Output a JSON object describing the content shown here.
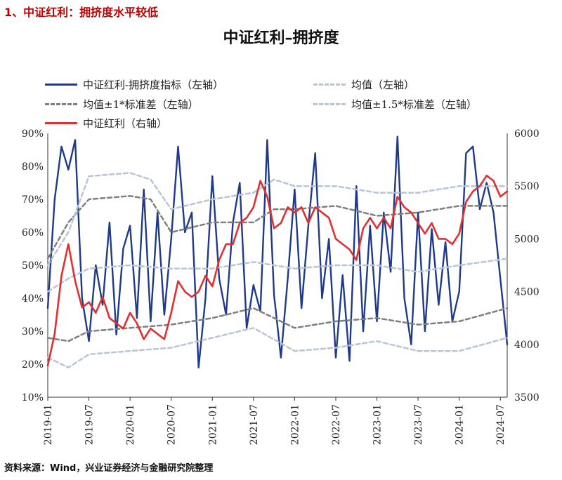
{
  "section_title": "1、中证红利：拥挤度水平较低",
  "source": "资料来源：Wind，兴业证券经济与金融研究院整理",
  "colors": {
    "crowding": "#1f3a8a",
    "mean": "#b8c4d8",
    "band1": "#7f7f7f",
    "band15": "#b8c4d8",
    "index": "#e0302f"
  },
  "chart_data": {
    "type": "line",
    "title": "中证红利–拥挤度",
    "legend": [
      {
        "label": "中证红利-拥挤度指标（左轴）",
        "style": "solid",
        "color_key": "crowding"
      },
      {
        "label": "均值（左轴）",
        "style": "dashed",
        "color_key": "mean"
      },
      {
        "label": "均值±1*标准差（左轴）",
        "style": "dashed",
        "color_key": "band1"
      },
      {
        "label": "均值±1.5*标准差（左轴）",
        "style": "dashed",
        "color_key": "band15"
      },
      {
        "label": "中证红利（右轴）",
        "style": "solid",
        "color_key": "index"
      }
    ],
    "x_ticks": [
      "2019-01",
      "2019-07",
      "2020-01",
      "2020-07",
      "2021-01",
      "2021-07",
      "2022-01",
      "2022-07",
      "2023-01",
      "2023-07",
      "2024-01",
      "2024-07"
    ],
    "x_range": [
      "2019-01",
      "2024-08"
    ],
    "y_left": {
      "ticks": [
        "10%",
        "20%",
        "30%",
        "40%",
        "50%",
        "60%",
        "70%",
        "80%",
        "90%"
      ],
      "range": [
        10,
        90
      ]
    },
    "y_right": {
      "ticks": [
        "3500",
        "4000",
        "4500",
        "5000",
        "5500",
        "6000"
      ],
      "range": [
        3500,
        6000
      ]
    },
    "series": [
      {
        "name": "中证红利-拥挤度指标（左轴）",
        "axis": "left",
        "color_key": "crowding",
        "dash": "",
        "points": [
          [
            "2019-01",
            37
          ],
          [
            "2019-02",
            70
          ],
          [
            "2019-03",
            86
          ],
          [
            "2019-04",
            79
          ],
          [
            "2019-05",
            88
          ],
          [
            "2019-06",
            40
          ],
          [
            "2019-07",
            27
          ],
          [
            "2019-08",
            50
          ],
          [
            "2019-09",
            38
          ],
          [
            "2019-10",
            63
          ],
          [
            "2019-11",
            29
          ],
          [
            "2019-12",
            55
          ],
          [
            "2020-01",
            62
          ],
          [
            "2020-02",
            34
          ],
          [
            "2020-03",
            73
          ],
          [
            "2020-04",
            33
          ],
          [
            "2020-05",
            66
          ],
          [
            "2020-06",
            35
          ],
          [
            "2020-07",
            58
          ],
          [
            "2020-08",
            86
          ],
          [
            "2020-09",
            60
          ],
          [
            "2020-10",
            66
          ],
          [
            "2020-11",
            19
          ],
          [
            "2020-12",
            40
          ],
          [
            "2021-01",
            77
          ],
          [
            "2021-02",
            46
          ],
          [
            "2021-03",
            35
          ],
          [
            "2021-04",
            63
          ],
          [
            "2021-05",
            75
          ],
          [
            "2021-06",
            31
          ],
          [
            "2021-07",
            44
          ],
          [
            "2021-08",
            36
          ],
          [
            "2021-09",
            88
          ],
          [
            "2021-10",
            41
          ],
          [
            "2021-11",
            22
          ],
          [
            "2021-12",
            46
          ],
          [
            "2022-01",
            73
          ],
          [
            "2022-02",
            37
          ],
          [
            "2022-03",
            62
          ],
          [
            "2022-04",
            84
          ],
          [
            "2022-05",
            40
          ],
          [
            "2022-06",
            58
          ],
          [
            "2022-07",
            22
          ],
          [
            "2022-08",
            47
          ],
          [
            "2022-09",
            21
          ],
          [
            "2022-10",
            74
          ],
          [
            "2022-11",
            30
          ],
          [
            "2022-12",
            62
          ],
          [
            "2023-01",
            33
          ],
          [
            "2023-02",
            66
          ],
          [
            "2023-03",
            48
          ],
          [
            "2023-04",
            89
          ],
          [
            "2023-05",
            40
          ],
          [
            "2023-06",
            26
          ],
          [
            "2023-07",
            66
          ],
          [
            "2023-08",
            30
          ],
          [
            "2023-09",
            61
          ],
          [
            "2023-10",
            38
          ],
          [
            "2023-11",
            57
          ],
          [
            "2023-12",
            33
          ],
          [
            "2024-01",
            42
          ],
          [
            "2024-02",
            84
          ],
          [
            "2024-03",
            86
          ],
          [
            "2024-04",
            67
          ],
          [
            "2024-05",
            75
          ],
          [
            "2024-06",
            66
          ],
          [
            "2024-07",
            46
          ],
          [
            "2024-08",
            26
          ]
        ]
      },
      {
        "name": "均值（左轴）",
        "axis": "left",
        "color_key": "mean",
        "dash": "6,4",
        "points": [
          [
            "2019-01",
            42
          ],
          [
            "2019-04",
            46
          ],
          [
            "2019-07",
            49
          ],
          [
            "2020-01",
            50
          ],
          [
            "2020-07",
            49
          ],
          [
            "2021-01",
            49
          ],
          [
            "2021-07",
            51
          ],
          [
            "2022-01",
            49
          ],
          [
            "2022-07",
            50
          ],
          [
            "2023-01",
            50
          ],
          [
            "2023-07",
            48
          ],
          [
            "2024-01",
            50
          ],
          [
            "2024-08",
            52
          ]
        ]
      },
      {
        "name": "均值+1*标准差（左轴）",
        "axis": "left",
        "color_key": "band1",
        "dash": "6,4",
        "points": [
          [
            "2019-01",
            52
          ],
          [
            "2019-04",
            63
          ],
          [
            "2019-07",
            70
          ],
          [
            "2020-01",
            71
          ],
          [
            "2020-04",
            70
          ],
          [
            "2020-07",
            60
          ],
          [
            "2021-01",
            63
          ],
          [
            "2021-07",
            63
          ],
          [
            "2021-10",
            67
          ],
          [
            "2022-01",
            67
          ],
          [
            "2022-07",
            68
          ],
          [
            "2023-01",
            65
          ],
          [
            "2023-07",
            66
          ],
          [
            "2024-01",
            68
          ],
          [
            "2024-08",
            68
          ]
        ]
      },
      {
        "name": "均值-1*标准差（左轴）",
        "axis": "left",
        "color_key": "band1",
        "dash": "6,4",
        "points": [
          [
            "2019-01",
            28
          ],
          [
            "2019-04",
            27
          ],
          [
            "2019-07",
            30
          ],
          [
            "2020-01",
            31
          ],
          [
            "2020-07",
            32
          ],
          [
            "2021-01",
            34
          ],
          [
            "2021-07",
            37
          ],
          [
            "2022-01",
            31
          ],
          [
            "2022-07",
            33
          ],
          [
            "2023-01",
            34
          ],
          [
            "2023-07",
            32
          ],
          [
            "2024-01",
            33
          ],
          [
            "2024-08",
            37
          ]
        ]
      },
      {
        "name": "均值+1.5*标准差（左轴）",
        "axis": "left",
        "color_key": "band15",
        "dash": "6,4",
        "points": [
          [
            "2019-01",
            50
          ],
          [
            "2019-04",
            60
          ],
          [
            "2019-07",
            77
          ],
          [
            "2020-01",
            78
          ],
          [
            "2020-04",
            76
          ],
          [
            "2020-07",
            67
          ],
          [
            "2021-01",
            70
          ],
          [
            "2021-07",
            72
          ],
          [
            "2021-10",
            76
          ],
          [
            "2022-01",
            74
          ],
          [
            "2022-07",
            74
          ],
          [
            "2023-01",
            72
          ],
          [
            "2023-07",
            72
          ],
          [
            "2024-01",
            74
          ],
          [
            "2024-08",
            74
          ]
        ]
      },
      {
        "name": "均值-1.5*标准差（左轴）",
        "axis": "left",
        "color_key": "band15",
        "dash": "6,4",
        "points": [
          [
            "2019-01",
            22
          ],
          [
            "2019-04",
            19
          ],
          [
            "2019-07",
            23
          ],
          [
            "2020-01",
            24
          ],
          [
            "2020-07",
            25
          ],
          [
            "2021-01",
            28
          ],
          [
            "2021-07",
            31
          ],
          [
            "2022-01",
            24
          ],
          [
            "2022-07",
            25
          ],
          [
            "2023-01",
            27
          ],
          [
            "2023-07",
            24
          ],
          [
            "2024-01",
            24
          ],
          [
            "2024-08",
            28
          ]
        ]
      },
      {
        "name": "中证红利（右轴）",
        "axis": "right",
        "color_key": "index",
        "dash": "",
        "points": [
          [
            "2019-01",
            3800
          ],
          [
            "2019-02",
            4100
          ],
          [
            "2019-03",
            4650
          ],
          [
            "2019-04",
            4950
          ],
          [
            "2019-05",
            4600
          ],
          [
            "2019-06",
            4350
          ],
          [
            "2019-07",
            4400
          ],
          [
            "2019-08",
            4300
          ],
          [
            "2019-09",
            4450
          ],
          [
            "2019-10",
            4250
          ],
          [
            "2019-11",
            4200
          ],
          [
            "2019-12",
            4150
          ],
          [
            "2020-01",
            4300
          ],
          [
            "2020-02",
            4200
          ],
          [
            "2020-03",
            4050
          ],
          [
            "2020-04",
            4150
          ],
          [
            "2020-05",
            4100
          ],
          [
            "2020-06",
            4050
          ],
          [
            "2020-07",
            4300
          ],
          [
            "2020-08",
            4600
          ],
          [
            "2020-09",
            4500
          ],
          [
            "2020-10",
            4450
          ],
          [
            "2020-11",
            4500
          ],
          [
            "2020-12",
            4650
          ],
          [
            "2021-01",
            4550
          ],
          [
            "2021-02",
            4800
          ],
          [
            "2021-03",
            4950
          ],
          [
            "2021-04",
            4950
          ],
          [
            "2021-05",
            5150
          ],
          [
            "2021-06",
            5200
          ],
          [
            "2021-07",
            5300
          ],
          [
            "2021-08",
            5550
          ],
          [
            "2021-09",
            5400
          ],
          [
            "2021-10",
            5100
          ],
          [
            "2021-11",
            5150
          ],
          [
            "2021-12",
            5300
          ],
          [
            "2022-01",
            5250
          ],
          [
            "2022-02",
            5300
          ],
          [
            "2022-03",
            5150
          ],
          [
            "2022-04",
            5300
          ],
          [
            "2022-05",
            5250
          ],
          [
            "2022-06",
            5200
          ],
          [
            "2022-07",
            5000
          ],
          [
            "2022-08",
            4950
          ],
          [
            "2022-09",
            4900
          ],
          [
            "2022-10",
            4800
          ],
          [
            "2022-11",
            5100
          ],
          [
            "2022-12",
            5200
          ],
          [
            "2023-01",
            5100
          ],
          [
            "2023-02",
            5200
          ],
          [
            "2023-03",
            5100
          ],
          [
            "2023-04",
            5400
          ],
          [
            "2023-05",
            5300
          ],
          [
            "2023-06",
            5250
          ],
          [
            "2023-07",
            5150
          ],
          [
            "2023-08",
            5050
          ],
          [
            "2023-09",
            5150
          ],
          [
            "2023-10",
            5000
          ],
          [
            "2023-11",
            5000
          ],
          [
            "2023-12",
            4950
          ],
          [
            "2024-01",
            5050
          ],
          [
            "2024-02",
            5350
          ],
          [
            "2024-03",
            5450
          ],
          [
            "2024-04",
            5500
          ],
          [
            "2024-05",
            5600
          ],
          [
            "2024-06",
            5550
          ],
          [
            "2024-07",
            5400
          ],
          [
            "2024-08",
            5450
          ]
        ]
      }
    ]
  }
}
